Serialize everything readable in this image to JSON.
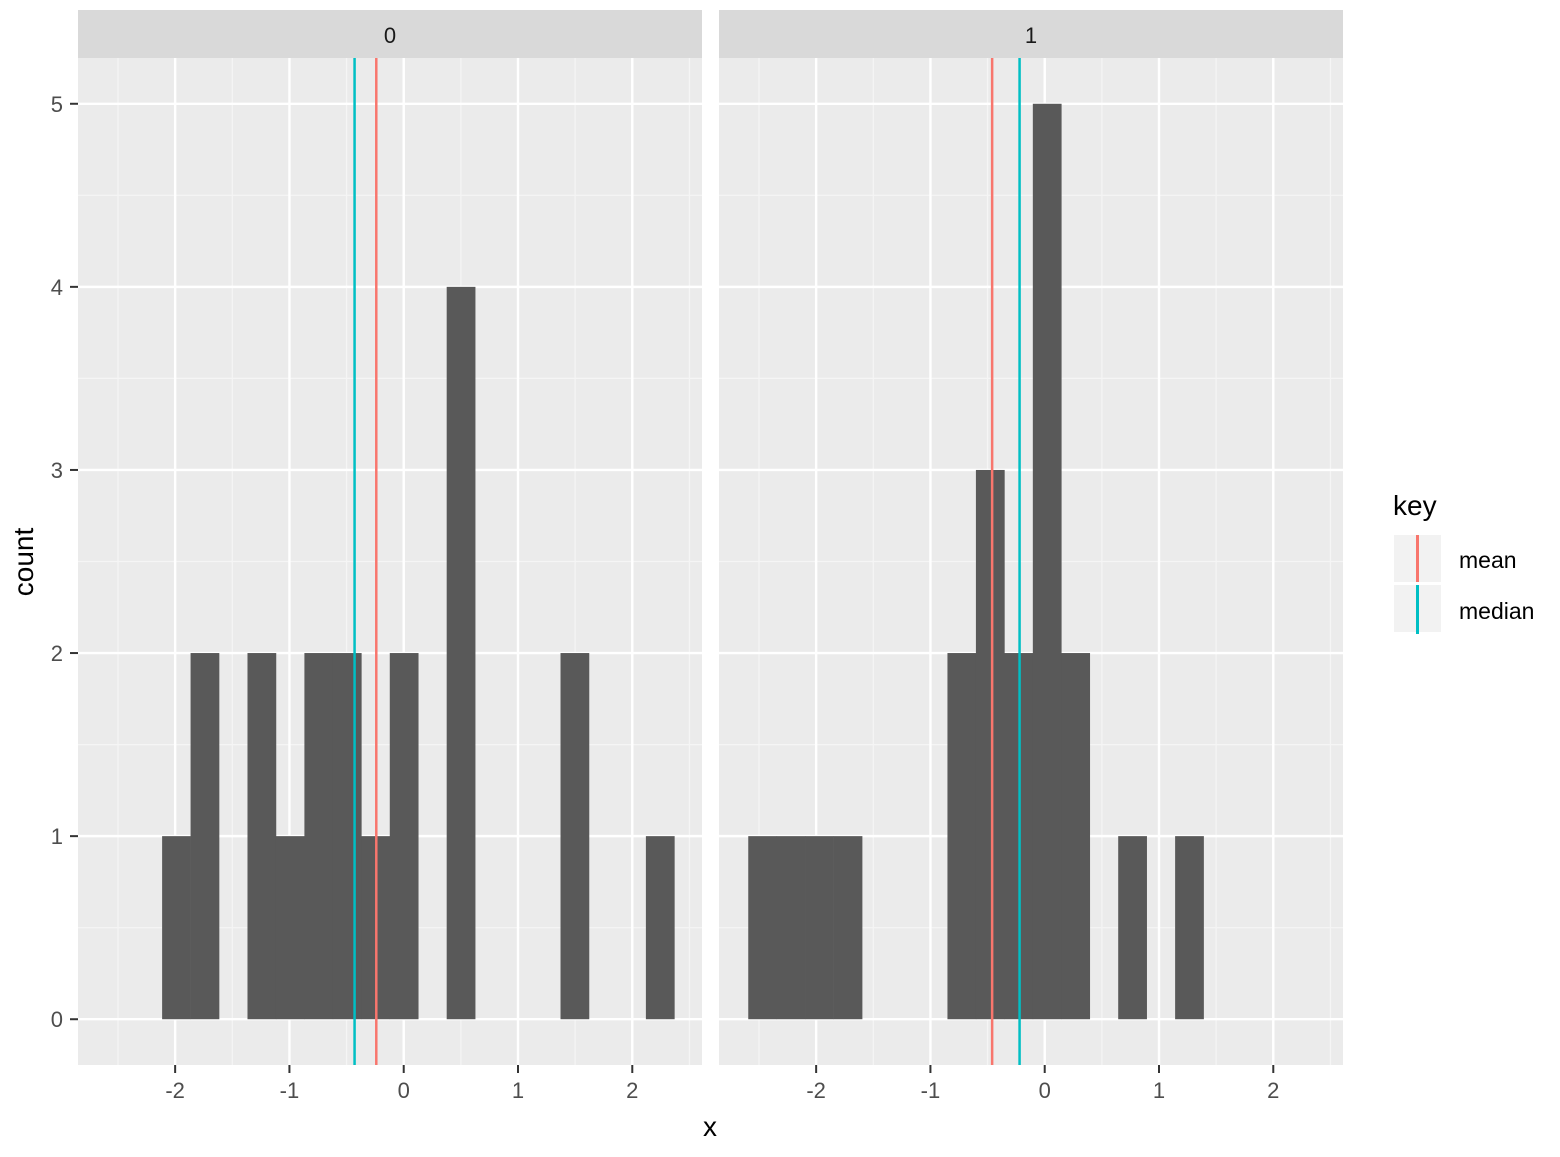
{
  "chart_data": {
    "type": "bar",
    "subtype": "faceted histogram",
    "xlabel": "x",
    "ylabel": "count",
    "xlim": [
      -2.85,
      2.61
    ],
    "ylim": [
      -0.25,
      5.25
    ],
    "x_ticks": [
      -2,
      -1,
      0,
      1,
      2
    ],
    "x_tick_labels": [
      "-2",
      "-1",
      "0",
      "1",
      "2"
    ],
    "y_ticks": [
      0,
      1,
      2,
      3,
      4,
      5
    ],
    "y_tick_labels": [
      "0",
      "1",
      "2",
      "3",
      "4",
      "5"
    ],
    "binwidth": 0.249,
    "bar_color": "#595959",
    "facets": [
      {
        "label": "0",
        "bin_start": -2.114,
        "counts": [
          1,
          2,
          0,
          2,
          1,
          2,
          2,
          1,
          2,
          0,
          4,
          0,
          0,
          0,
          2,
          0,
          0,
          1
        ],
        "mean": -0.24,
        "median": -0.43
      },
      {
        "label": "1",
        "bin_start": -2.594,
        "counts": [
          1,
          1,
          1,
          1,
          0,
          0,
          0,
          2,
          3,
          2,
          5,
          2,
          0,
          1,
          0,
          1
        ],
        "mean": -0.46,
        "median": -0.22
      }
    ],
    "legend": {
      "title": "key",
      "position": "right",
      "entries": [
        {
          "label": "mean",
          "color": "#F8766D"
        },
        {
          "label": "median",
          "color": "#00BFC4"
        }
      ]
    }
  }
}
